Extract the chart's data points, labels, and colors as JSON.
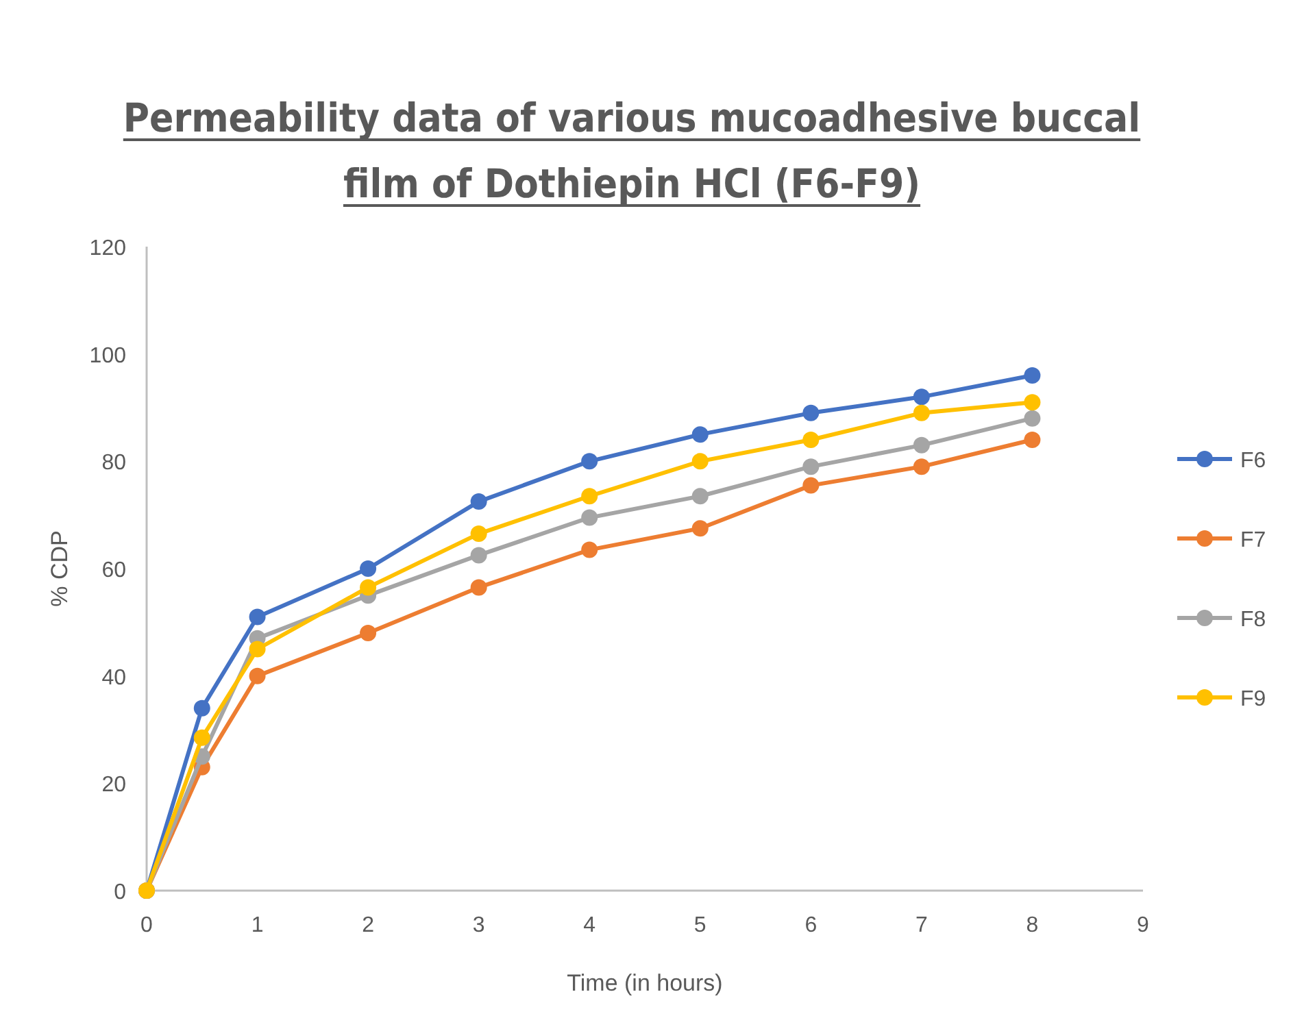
{
  "chart_data": {
    "type": "line",
    "title": "Permeability data of various mucoadhesive buccal film of Dothiepin HCl (F6-F9)",
    "xlabel": "Time (in hours)",
    "ylabel": "% CDP",
    "x": [
      0,
      0.5,
      1,
      2,
      3,
      4,
      5,
      6,
      7,
      8
    ],
    "series": [
      {
        "name": "F6",
        "color": "#4472c4",
        "values": [
          0,
          34,
          51,
          60,
          72.5,
          80,
          85,
          89,
          92,
          96
        ]
      },
      {
        "name": "F7",
        "color": "#ed7d31",
        "values": [
          0,
          23,
          40,
          48,
          56.5,
          63.5,
          67.5,
          75.5,
          79,
          84
        ]
      },
      {
        "name": "F8",
        "color": "#a5a5a5",
        "values": [
          0,
          25,
          47,
          55,
          62.5,
          69.5,
          73.5,
          79,
          83,
          88
        ]
      },
      {
        "name": "F9",
        "color": "#ffc000",
        "values": [
          0,
          28.5,
          45,
          56.5,
          66.5,
          73.5,
          80,
          84,
          89,
          91
        ]
      }
    ],
    "xlim": [
      0,
      9
    ],
    "xticks": [
      0,
      1,
      2,
      3,
      4,
      5,
      6,
      7,
      8,
      9
    ],
    "ylim": [
      0,
      120
    ],
    "yticks": [
      0,
      20,
      40,
      60,
      80,
      100,
      120
    ],
    "grid": false,
    "legend": "right",
    "marker": "circle",
    "line_style": "solid"
  }
}
